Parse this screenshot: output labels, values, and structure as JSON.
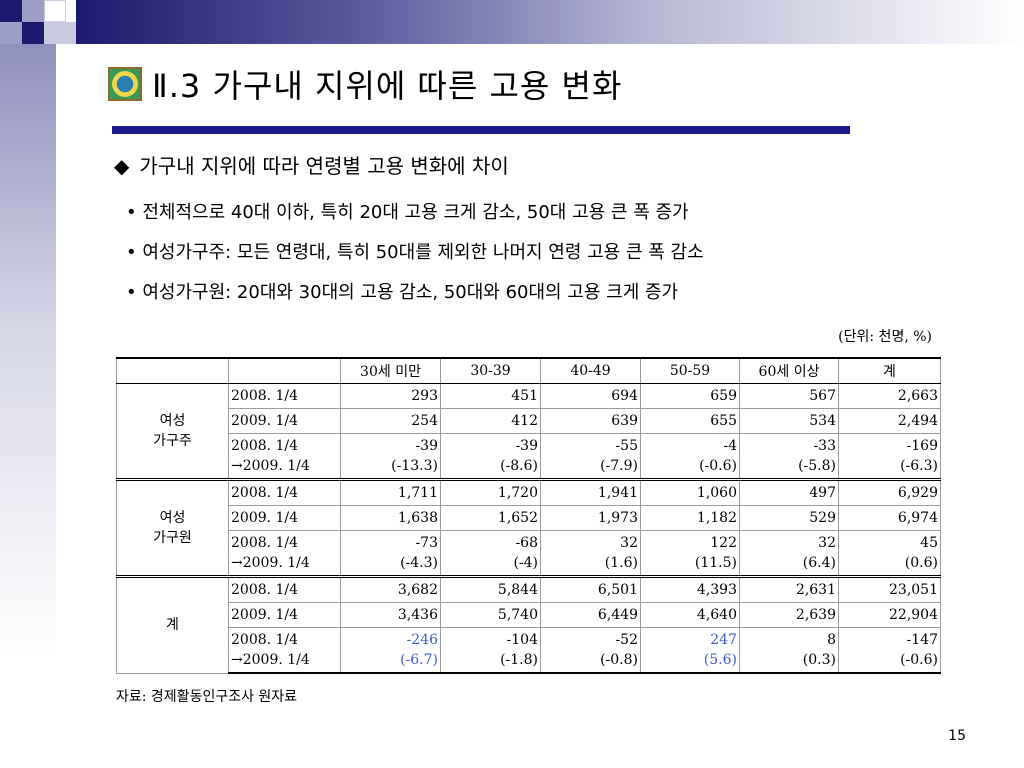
{
  "title": "Ⅱ.3 가구내 지위에 따른 고용 변화",
  "headline": "가구내 지위에 따라 연령별 고용 변화에 차이",
  "bullets": [
    "전체적으로 40대 이하, 특히 20대 고용 크게 감소, 50대 고용 큰 폭 증가",
    "여성가구주:  모든 연령대, 특히 50대를 제외한 나머지 연령 고용 큰 폭 감소",
    "여성가구원:  20대와 30대의 고용 감소, 50대와 60대의 고용 크게 증가"
  ],
  "unit": "(단위: 천명, %)",
  "table": {
    "headers": [
      "",
      "",
      "30세 미만",
      "30-39",
      "40-49",
      "50-59",
      "60세 이상",
      "계"
    ],
    "groups": [
      {
        "name1": "여성",
        "name2": "가구주",
        "rows": [
          {
            "period": "2008. 1/4",
            "values": [
              "293",
              "451",
              "694",
              "659",
              "567",
              "2,663"
            ]
          },
          {
            "period": "2009. 1/4",
            "values": [
              "254",
              "412",
              "639",
              "655",
              "534",
              "2,494"
            ]
          },
          {
            "period1": "2008. 1/4",
            "period2": "→2009. 1/4",
            "values": [
              "-39",
              "-39",
              "-55",
              "-4",
              "-33",
              "-169"
            ],
            "pcts": [
              "(-13.3)",
              "(-8.6)",
              "(-7.9)",
              "(-0.6)",
              "(-5.8)",
              "(-6.3)"
            ]
          }
        ]
      },
      {
        "name1": "여성",
        "name2": "가구원",
        "rows": [
          {
            "period": "2008. 1/4",
            "values": [
              "1,711",
              "1,720",
              "1,941",
              "1,060",
              "497",
              "6,929"
            ]
          },
          {
            "period": "2009. 1/4",
            "values": [
              "1,638",
              "1,652",
              "1,973",
              "1,182",
              "529",
              "6,974"
            ]
          },
          {
            "period1": "2008. 1/4",
            "period2": "→2009. 1/4",
            "values": [
              "-73",
              "-68",
              "32",
              "122",
              "32",
              "45"
            ],
            "pcts": [
              "(-4.3)",
              "(-4)",
              "(1.6)",
              "(11.5)",
              "(6.4)",
              "(0.6)"
            ]
          }
        ]
      },
      {
        "name1": "계",
        "name2": "",
        "rows": [
          {
            "period": "2008. 1/4",
            "values": [
              "3,682",
              "5,844",
              "6,501",
              "4,393",
              "2,631",
              "23,051"
            ]
          },
          {
            "period": "2009. 1/4",
            "values": [
              "3,436",
              "5,740",
              "6,449",
              "4,640",
              "2,639",
              "22,904"
            ]
          },
          {
            "period1": "2008. 1/4",
            "period2": "→2009. 1/4",
            "values": [
              "-246",
              "-104",
              "-52",
              "247",
              "8",
              "-147"
            ],
            "pcts": [
              "(-6.7)",
              "(-1.8)",
              "(-0.8)",
              "(5.6)",
              "(0.3)",
              "(-0.6)"
            ]
          }
        ]
      }
    ]
  },
  "source": "자료: 경제활동인구조사 원자료",
  "page_number": "15",
  "colors": {
    "navy": "#1c1a8a",
    "highlight_blue": "#3b5bd6"
  }
}
